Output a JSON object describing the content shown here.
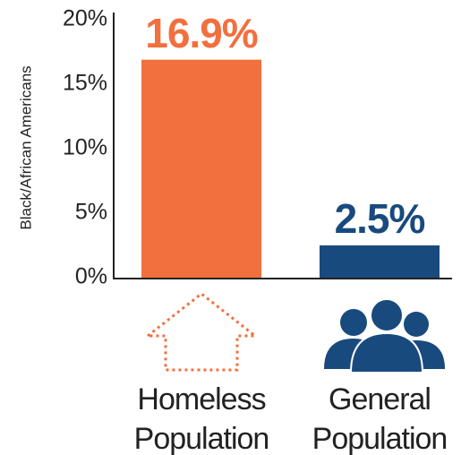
{
  "chart_data": {
    "type": "bar",
    "ylabel": "Black/African Americans",
    "categories": [
      "Homeless Population",
      "General Population"
    ],
    "values": [
      16.9,
      2.5
    ],
    "value_labels": [
      "16.9%",
      "2.5%"
    ],
    "colors": [
      "#f26f3e",
      "#184a7e"
    ],
    "ylim": [
      0,
      20
    ],
    "yticks": [
      {
        "value": 0,
        "label": "0%"
      },
      {
        "value": 5,
        "label": "5%"
      },
      {
        "value": 10,
        "label": "10%"
      },
      {
        "value": 15,
        "label": "15%"
      },
      {
        "value": 20,
        "label": "20%"
      }
    ]
  }
}
